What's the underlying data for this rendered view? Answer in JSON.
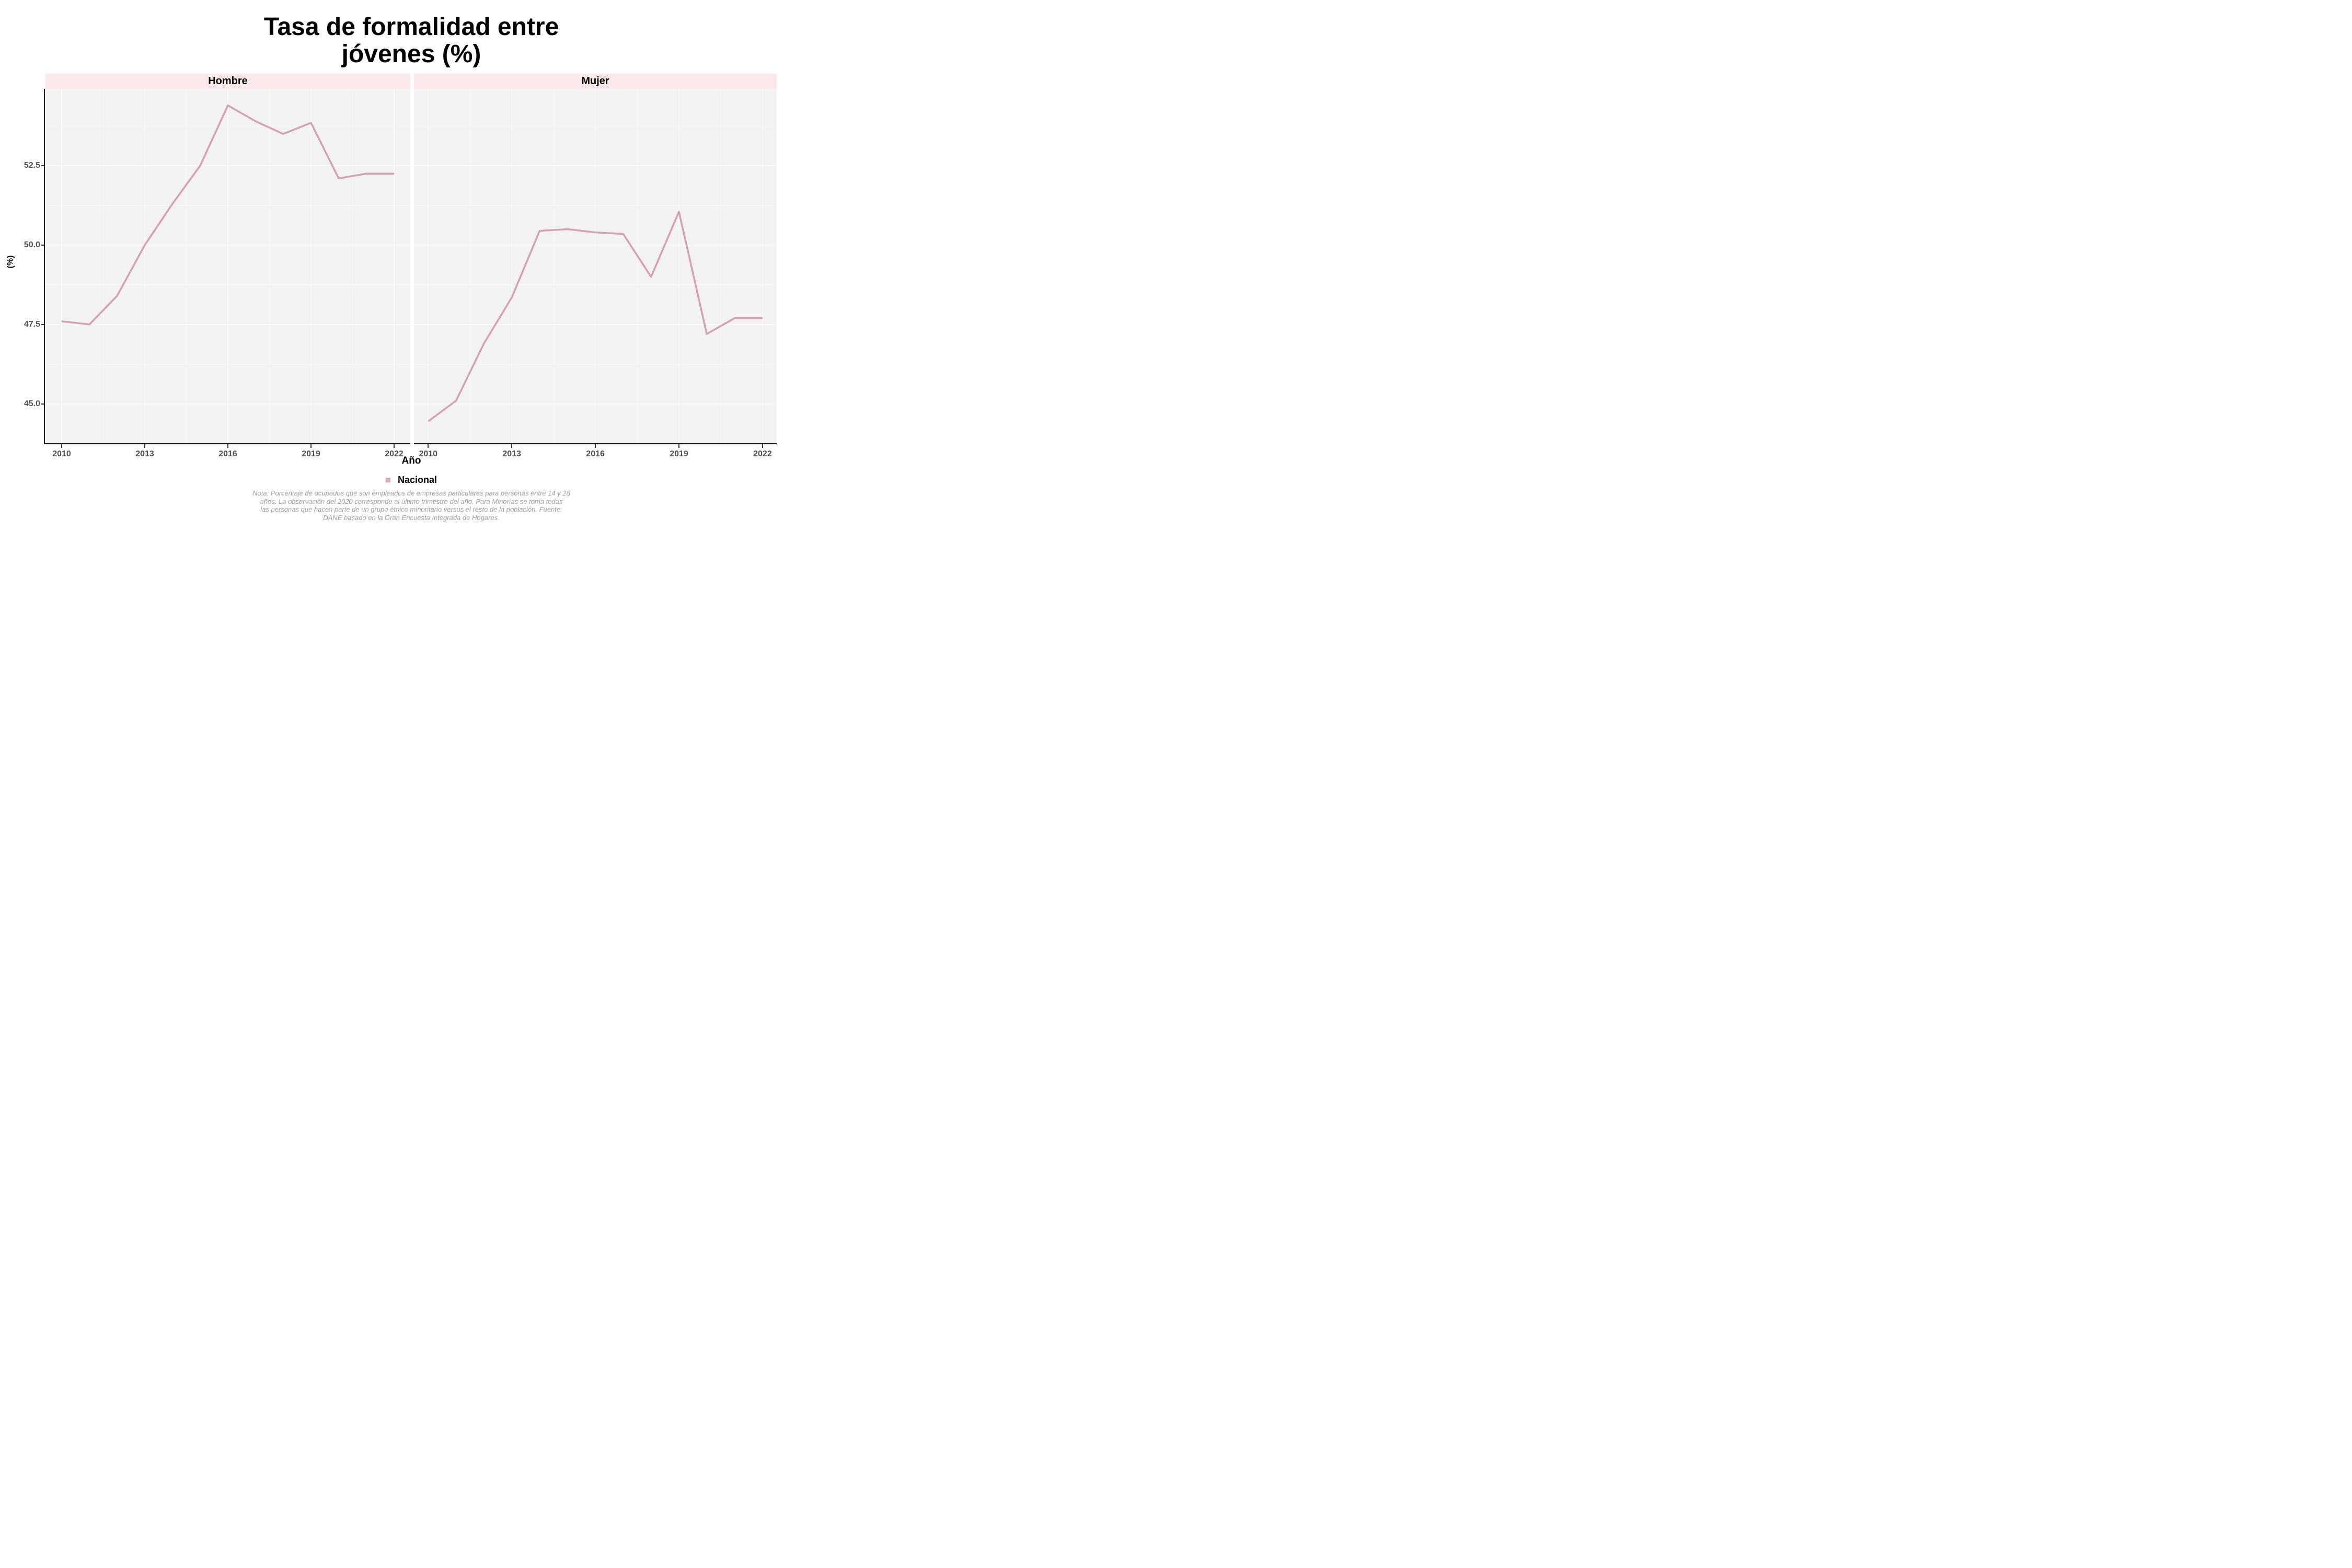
{
  "title": {
    "line1": "Tasa de formalidad entre",
    "line2": "jóvenes (%)"
  },
  "y_axis": {
    "label": "(%)",
    "tick_labels": [
      "45.0",
      "47.5",
      "50.0",
      "52.5"
    ]
  },
  "x_axis": {
    "label": "Año",
    "tick_labels": [
      "2010",
      "2013",
      "2016",
      "2019",
      "2022"
    ]
  },
  "facets": {
    "left": "Hombre",
    "right": "Mujer"
  },
  "legend": {
    "label": "Nacional",
    "swatch_color": "#dcacb8"
  },
  "note": {
    "lines": [
      "Nota: Porcentaje de ocupados que son empleados de empresas particulares para personas entre 14 y 28",
      "años. La observación del 2020 corresponde al último trimestre del año. Para Minorías se toma todas",
      "las personas que hacen parte de un grupo étnico minoritario versus el resto de la población. Fuente:",
      "DANE basado en la Gran Encuesta Integrada de Hogares."
    ]
  },
  "colors": {
    "line": "#d4a1b0",
    "strip_bg": "#fae9e8",
    "panel_bg": "#f3f2f2",
    "grid_major": "#fafafa",
    "grid_minor": "#f8f7f7",
    "axis": "#1a1a1a",
    "tick": "#333333",
    "tick_label": "#4f4f4f",
    "note_text": "#9e9e9e"
  },
  "chart_data": {
    "type": "line",
    "title": "Tasa de formalidad entre jóvenes (%)",
    "xlabel": "Año",
    "ylabel": "(%)",
    "legend_position": "bottom",
    "grid": true,
    "x": [
      2010,
      2011,
      2012,
      2013,
      2014,
      2015,
      2016,
      2017,
      2018,
      2019,
      2020,
      2021,
      2022
    ],
    "x_ticks": [
      2010,
      2013,
      2016,
      2019,
      2022
    ],
    "y_ticks": [
      45.0,
      47.5,
      50.0,
      52.5
    ],
    "ylim": [
      43.8,
      54.9
    ],
    "facets": [
      {
        "name": "Hombre",
        "series": [
          {
            "name": "Nacional",
            "values": [
              47.6,
              47.5,
              48.4,
              50.0,
              51.3,
              52.5,
              54.4,
              53.9,
              53.5,
              53.85,
              52.1,
              52.25,
              52.25
            ]
          }
        ]
      },
      {
        "name": "Mujer",
        "series": [
          {
            "name": "Nacional",
            "values": [
              44.45,
              45.1,
              46.9,
              48.35,
              50.45,
              50.5,
              50.4,
              50.35,
              49.0,
              51.05,
              47.2,
              47.7,
              47.7
            ]
          }
        ]
      }
    ]
  }
}
